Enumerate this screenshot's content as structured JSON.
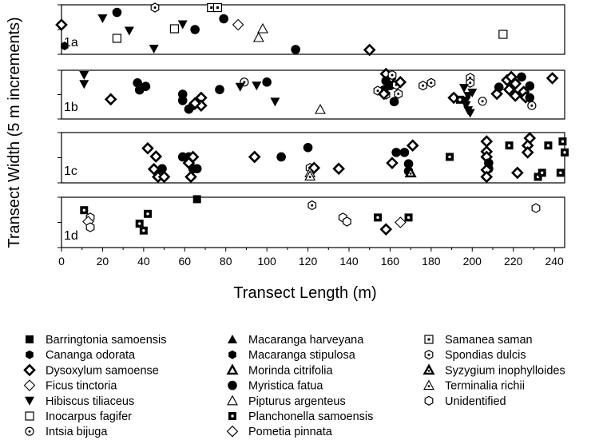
{
  "chart_data": {
    "type": "scatter",
    "xlabel": "Transect Length (m)",
    "ylabel": "Transect Width (5 m increments)",
    "xlim": [
      0,
      245
    ],
    "xticks": [
      "0",
      "20",
      "40",
      "60",
      "80",
      "100",
      "120",
      "140",
      "160",
      "180",
      "200",
      "220",
      "240"
    ],
    "grid": false,
    "legend_position": "bottom",
    "panels": [
      {
        "label": "1a",
        "points": [
          {
            "s": "Dysoxylum samoense",
            "x": 0,
            "y": 0.62
          },
          {
            "s": "Cananga odorata",
            "x": 1.5,
            "y": 0.09
          },
          {
            "s": "Hibiscus tiliaceus",
            "x": 20,
            "y": 0.78
          },
          {
            "s": "Myristica fatua",
            "x": 27,
            "y": 0.93
          },
          {
            "s": "Inocarpus fagifer",
            "x": 27,
            "y": 0.28
          },
          {
            "s": "Hibiscus tiliaceus",
            "x": 33,
            "y": 0.47
          },
          {
            "s": "Hibiscus tiliaceus",
            "x": 45,
            "y": 0.02
          },
          {
            "s": "Spondias dulcis",
            "x": 45.5,
            "y": 1.05
          },
          {
            "s": "Inocarpus fagifer",
            "x": 55,
            "y": 0.52
          },
          {
            "s": "Hibiscus tiliaceus",
            "x": 59,
            "y": 0.63
          },
          {
            "s": "Myristica fatua",
            "x": 65,
            "y": 0.5
          },
          {
            "s": "Samanea saman",
            "x": 73,
            "y": 1.05
          },
          {
            "s": "Samanea saman",
            "x": 76,
            "y": 1.05
          },
          {
            "s": "Myristica fatua",
            "x": 79,
            "y": 0.77
          },
          {
            "s": "Pometia pinnata",
            "x": 86,
            "y": 0.62
          },
          {
            "s": "Pipturus argenteus",
            "x": 96,
            "y": 0.3
          },
          {
            "s": "Pipturus argenteus",
            "x": 98,
            "y": 0.52
          },
          {
            "s": "Myristica fatua",
            "x": 114,
            "y": 0.0
          },
          {
            "s": "Dysoxylum samoense",
            "x": 150,
            "y": -0.01
          },
          {
            "s": "Inocarpus fagifer",
            "x": 215,
            "y": 0.38
          }
        ]
      },
      {
        "label": "1b",
        "points": [
          {
            "s": "Hibiscus tiliaceus",
            "x": 11,
            "y": 1.0
          },
          {
            "s": "Hibiscus tiliaceus",
            "x": 11,
            "y": 0.77
          },
          {
            "s": "Dysoxylum samoense",
            "x": 24,
            "y": 0.38
          },
          {
            "s": "Myristica fatua",
            "x": 37,
            "y": 0.8
          },
          {
            "s": "Myristica fatua",
            "x": 41,
            "y": 0.71
          },
          {
            "s": "Myristica fatua",
            "x": 38,
            "y": 0.62
          },
          {
            "s": "Myristica fatua",
            "x": 59,
            "y": 0.51
          },
          {
            "s": "Myristica fatua",
            "x": 59,
            "y": 0.35
          },
          {
            "s": "Myristica fatua",
            "x": 62,
            "y": 0.13
          },
          {
            "s": "Myristica fatua",
            "x": 64,
            "y": 0.22
          },
          {
            "s": "Dysoxylum samoense",
            "x": 68,
            "y": 0.42
          },
          {
            "s": "Dysoxylum samoense",
            "x": 68,
            "y": 0.22
          },
          {
            "s": "Dysoxylum samoense",
            "x": 65,
            "y": 0.28
          },
          {
            "s": "Myristica fatua",
            "x": 77,
            "y": 0.63
          },
          {
            "s": "Intsia bijuga",
            "x": 89,
            "y": 0.82
          },
          {
            "s": "Hibiscus tiliaceus",
            "x": 87,
            "y": 0.7
          },
          {
            "s": "Hibiscus tiliaceus",
            "x": 95,
            "y": 0.73
          },
          {
            "s": "Myristica fatua",
            "x": 100,
            "y": 0.82
          },
          {
            "s": "Hibiscus tiliaceus",
            "x": 104,
            "y": 0.32
          },
          {
            "s": "Pipturus argenteus",
            "x": 126,
            "y": 0.12
          },
          {
            "s": "Dysoxylum samoense",
            "x": 158,
            "y": 1.03
          },
          {
            "s": "Dysoxylum samoense",
            "x": 160,
            "y": 0.9
          },
          {
            "s": "Spondias dulcis",
            "x": 161,
            "y": 1.0
          },
          {
            "s": "Myristica fatua",
            "x": 158,
            "y": 0.85
          },
          {
            "s": "Myristica fatua",
            "x": 160,
            "y": 0.73
          },
          {
            "s": "Myristica fatua",
            "x": 157,
            "y": 0.62
          },
          {
            "s": "Spondias dulcis",
            "x": 154,
            "y": 0.6
          },
          {
            "s": "Spondias dulcis",
            "x": 158,
            "y": 0.5
          },
          {
            "s": "Dysoxylum samoense",
            "x": 157,
            "y": 0.52
          },
          {
            "s": "Spondias dulcis",
            "x": 163,
            "y": 0.75
          },
          {
            "s": "Spondias dulcis",
            "x": 164,
            "y": 0.52
          },
          {
            "s": "Dysoxylum samoense",
            "x": 165,
            "y": 0.82
          },
          {
            "s": "Myristica fatua",
            "x": 162,
            "y": 0.32
          },
          {
            "s": "Spondias dulcis",
            "x": 176,
            "y": 0.73
          },
          {
            "s": "Spondias dulcis",
            "x": 180,
            "y": 0.8
          },
          {
            "s": "Dysoxylum samoense",
            "x": 191,
            "y": 0.42
          },
          {
            "s": "Planchonella samoensis",
            "x": 194,
            "y": 0.37
          },
          {
            "s": "Spondias dulcis",
            "x": 199,
            "y": 0.93
          },
          {
            "s": "Spondias dulcis",
            "x": 199,
            "y": 0.8
          },
          {
            "s": "Hibiscus tiliaceus",
            "x": 196,
            "y": 0.67
          },
          {
            "s": "Hibiscus tiliaceus",
            "x": 200,
            "y": 0.55
          },
          {
            "s": "Hibiscus tiliaceus",
            "x": 198,
            "y": 0.47
          },
          {
            "s": "Hibiscus tiliaceus",
            "x": 197,
            "y": 0.35
          },
          {
            "s": "Hibiscus tiliaceus",
            "x": 197,
            "y": 0.23
          },
          {
            "s": "Hibiscus tiliaceus",
            "x": 198,
            "y": 0.1
          },
          {
            "s": "Hibiscus tiliaceus",
            "x": 199,
            "y": 0.03
          },
          {
            "s": "Intsia bijuga",
            "x": 205,
            "y": 0.33
          },
          {
            "s": "Dysoxylum samoense",
            "x": 212,
            "y": 0.52
          },
          {
            "s": "Myristica fatua",
            "x": 213,
            "y": 0.69
          },
          {
            "s": "Dysoxylum samoense",
            "x": 217,
            "y": 0.87
          },
          {
            "s": "Dysoxylum samoense",
            "x": 219,
            "y": 0.95
          },
          {
            "s": "Dysoxylum samoense",
            "x": 221,
            "y": 0.78
          },
          {
            "s": "Dysoxylum samoense",
            "x": 218,
            "y": 0.63
          },
          {
            "s": "Dysoxylum samoense",
            "x": 221,
            "y": 0.47
          },
          {
            "s": "Dysoxylum samoense",
            "x": 225,
            "y": 0.57
          },
          {
            "s": "Dysoxylum samoense",
            "x": 226,
            "y": 0.43
          },
          {
            "s": "Myristica fatua",
            "x": 224,
            "y": 0.95
          },
          {
            "s": "Myristica fatua",
            "x": 228,
            "y": 0.72
          },
          {
            "s": "Myristica fatua",
            "x": 228,
            "y": 0.42
          },
          {
            "s": "Intsia bijuga",
            "x": 229,
            "y": 0.22
          },
          {
            "s": "Dysoxylum samoense",
            "x": 239,
            "y": 0.92
          }
        ]
      },
      {
        "label": "1c",
        "points": [
          {
            "s": "Dysoxylum samoense",
            "x": 42,
            "y": 0.73
          },
          {
            "s": "Dysoxylum samoense",
            "x": 46,
            "y": 0.53
          },
          {
            "s": "Dysoxylum samoense",
            "x": 45,
            "y": 0.22
          },
          {
            "s": "Dysoxylum samoense",
            "x": 47,
            "y": 0.03
          },
          {
            "s": "Myristica fatua",
            "x": 49,
            "y": 0.23
          },
          {
            "s": "Dysoxylum samoense",
            "x": 50,
            "y": 0.03
          },
          {
            "s": "Myristica fatua",
            "x": 59,
            "y": 0.52
          },
          {
            "s": "Myristica fatua",
            "x": 62,
            "y": 0.52
          },
          {
            "s": "Dysoxylum samoense",
            "x": 64,
            "y": 0.52
          },
          {
            "s": "Dysoxylum samoense",
            "x": 62,
            "y": 0.37
          },
          {
            "s": "Myristica fatua",
            "x": 64,
            "y": 0.23
          },
          {
            "s": "Myristica fatua",
            "x": 66,
            "y": 0.23
          },
          {
            "s": "Dysoxylum samoense",
            "x": 63,
            "y": 0.03
          },
          {
            "s": "Dysoxylum samoense",
            "x": 94,
            "y": 0.52
          },
          {
            "s": "Myristica fatua",
            "x": 107,
            "y": 0.52
          },
          {
            "s": "Myristica fatua",
            "x": 120,
            "y": 0.75
          },
          {
            "s": "Spondias dulcis",
            "x": 121,
            "y": 0.25
          },
          {
            "s": "Dysoxylum samoense",
            "x": 123,
            "y": 0.25
          },
          {
            "s": "Terminalia richii",
            "x": 121,
            "y": 0.13
          },
          {
            "s": "Terminalia richii",
            "x": 121,
            "y": 0.05
          },
          {
            "s": "Dysoxylum samoense",
            "x": 135,
            "y": 0.23
          },
          {
            "s": "Dysoxylum samoense",
            "x": 161,
            "y": 0.37
          },
          {
            "s": "Myristica fatua",
            "x": 163,
            "y": 0.63
          },
          {
            "s": "Myristica fatua",
            "x": 167,
            "y": 0.63
          },
          {
            "s": "Dysoxylum samoense",
            "x": 171,
            "y": 0.8
          },
          {
            "s": "Myristica fatua",
            "x": 169,
            "y": 0.35
          },
          {
            "s": "Myristica fatua",
            "x": 169,
            "y": 0.17
          },
          {
            "s": "Syzygium inophylloides",
            "x": 170,
            "y": 0.13
          },
          {
            "s": "Planchonella samoensis",
            "x": 189,
            "y": 0.52
          },
          {
            "s": "Dysoxylum samoense",
            "x": 207,
            "y": 0.9
          },
          {
            "s": "Dysoxylum samoense",
            "x": 207,
            "y": 0.65
          },
          {
            "s": "Dysoxylum samoense",
            "x": 207,
            "y": 0.52
          },
          {
            "s": "Myristica fatua",
            "x": 208,
            "y": 0.37
          },
          {
            "s": "Myristica fatua",
            "x": 208,
            "y": 0.23
          },
          {
            "s": "Dysoxylum samoense",
            "x": 207,
            "y": 0.2
          },
          {
            "s": "Dysoxylum samoense",
            "x": 207,
            "y": 0.03
          },
          {
            "s": "Planchonella samoensis",
            "x": 218,
            "y": 0.8
          },
          {
            "s": "Dysoxylum samoense",
            "x": 222,
            "y": 0.13
          },
          {
            "s": "Dysoxylum samoense",
            "x": 228,
            "y": 0.98
          },
          {
            "s": "Dysoxylum samoense",
            "x": 227,
            "y": 0.8
          },
          {
            "s": "Dysoxylum samoense",
            "x": 227,
            "y": 0.63
          },
          {
            "s": "Planchonella samoensis",
            "x": 232,
            "y": 0.03
          },
          {
            "s": "Planchonella samoensis",
            "x": 234,
            "y": 0.13
          },
          {
            "s": "Planchonella samoensis",
            "x": 237,
            "y": 0.8
          },
          {
            "s": "Planchonella samoensis",
            "x": 243,
            "y": 0.13
          },
          {
            "s": "Planchonella samoensis",
            "x": 244,
            "y": 0.9
          },
          {
            "s": "Planchonella samoensis",
            "x": 245,
            "y": 0.63
          }
        ]
      },
      {
        "label": "1d",
        "points": [
          {
            "s": "Barringtonia samoensis",
            "x": 66,
            "y": 1.07
          },
          {
            "s": "Planchonella samoensis",
            "x": 11,
            "y": 0.8
          },
          {
            "s": "Unidentified",
            "x": 14,
            "y": 0.62
          },
          {
            "s": "Ficus tinctoria",
            "x": 13,
            "y": 0.52
          },
          {
            "s": "Unidentified",
            "x": 14,
            "y": 0.38
          },
          {
            "s": "Planchonella samoensis",
            "x": 42,
            "y": 0.71
          },
          {
            "s": "Planchonella samoensis",
            "x": 38,
            "y": 0.47
          },
          {
            "s": "Planchonella samoensis",
            "x": 40,
            "y": 0.3
          },
          {
            "s": "Spondias dulcis",
            "x": 122,
            "y": 0.92
          },
          {
            "s": "Unidentified",
            "x": 137,
            "y": 0.62
          },
          {
            "s": "Unidentified",
            "x": 139,
            "y": 0.52
          },
          {
            "s": "Planchonella samoensis",
            "x": 154,
            "y": 0.62
          },
          {
            "s": "Ficus tinctoria",
            "x": 165,
            "y": 0.5
          },
          {
            "s": "Dysoxylum samoense",
            "x": 158,
            "y": 0.33
          },
          {
            "s": "Planchonella samoensis",
            "x": 169,
            "y": 0.62
          },
          {
            "s": "Unidentified",
            "x": 231,
            "y": 0.85
          }
        ]
      }
    ],
    "legend": [
      "Barringtonia samoensis",
      "Cananga odorata",
      "Dysoxylum samoense",
      "Ficus tinctoria",
      "Hibiscus tiliaceus",
      "Inocarpus fagifer",
      "Intsia bijuga",
      "Macaranga harveyana",
      "Macaranga stipulosa",
      "Morinda citrifolia",
      "Myristica fatua",
      "Pipturus argenteus",
      "Planchonella samoensis",
      "Pometia pinnata",
      "Samanea saman",
      "Spondias dulcis",
      "Syzygium inophylloides",
      "Terminalia richii",
      "Unidentified"
    ]
  },
  "symbols": {
    "Barringtonia samoensis": "filled-square",
    "Cananga odorata": "filled-hexagon",
    "Dysoxylum samoense": "bold-diamond",
    "Ficus tinctoria": "open-diamond",
    "Hibiscus tiliaceus": "filled-triangle-down",
    "Inocarpus fagifer": "open-square",
    "Intsia bijuga": "circle-dot",
    "Macaranga harveyana": "filled-triangle-up",
    "Macaranga stipulosa": "filled-hexagon",
    "Morinda citrifolia": "bold-triangle-up",
    "Myristica fatua": "filled-circle",
    "Pipturus argenteus": "open-triangle-up",
    "Planchonella samoensis": "square-dot",
    "Pometia pinnata": "open-diamond",
    "Samanea saman": "open-square-dot",
    "Spondias dulcis": "hexagon-dot",
    "Syzygium inophylloides": "bold-triangle-dot",
    "Terminalia richii": "triangle-dot",
    "Unidentified": "open-hexagon"
  }
}
